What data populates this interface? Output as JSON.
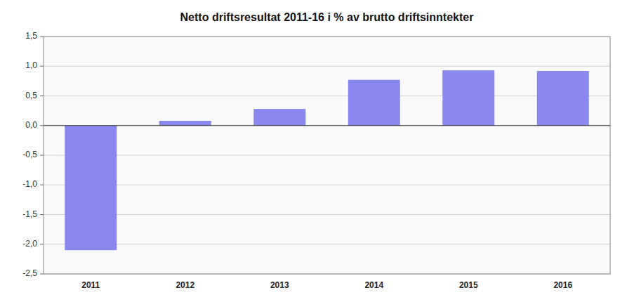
{
  "chart_data": {
    "type": "bar",
    "title": "Netto driftsresultat 2011-16 i % av brutto driftsinntekter",
    "categories": [
      "2011",
      "2012",
      "2013",
      "2014",
      "2015",
      "2016"
    ],
    "values": [
      -2.1,
      0.08,
      0.28,
      0.77,
      0.93,
      0.92
    ],
    "color": "#8888ee",
    "ylim": [
      -2.5,
      1.5
    ],
    "yticks": [
      {
        "value": -2.5,
        "label": "-2,5"
      },
      {
        "value": -2.0,
        "label": "-2,0"
      },
      {
        "value": -1.5,
        "label": "-1,5"
      },
      {
        "value": -1.0,
        "label": "-1,0"
      },
      {
        "value": -0.5,
        "label": "-0,5"
      },
      {
        "value": 0.0,
        "label": "0,0"
      },
      {
        "value": 0.5,
        "label": "0,5"
      },
      {
        "value": 1.0,
        "label": "1,0"
      },
      {
        "value": 1.5,
        "label": "1,5"
      }
    ],
    "grid": true
  }
}
